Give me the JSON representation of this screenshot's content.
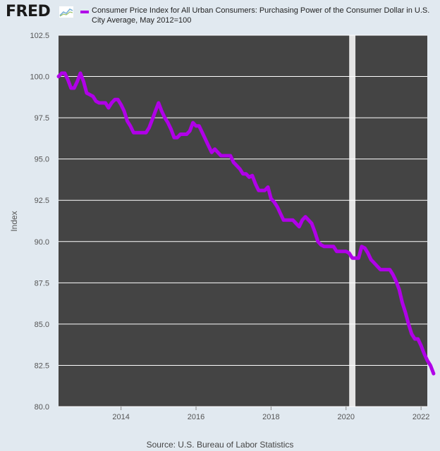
{
  "header": {
    "logo": "FRED",
    "logo_icon": "fred-chart-icon"
  },
  "chart_data": {
    "type": "line",
    "title": "Consumer Price Index for All Urban Consumers: Purchasing Power of the Consumer Dollar in U.S. City Average, May 2012=100",
    "ylabel": "Index",
    "xlabel": "",
    "source": "Source: U.S. Bureau of Labor Statistics",
    "ylim": [
      80.0,
      102.5
    ],
    "yticks": [
      "80.0",
      "82.5",
      "85.0",
      "87.5",
      "90.0",
      "92.5",
      "95.0",
      "97.5",
      "100.0",
      "102.5"
    ],
    "xlim": [
      "2012-05",
      "2022-03"
    ],
    "xticks": [
      "2014",
      "2016",
      "2018",
      "2020",
      "2022"
    ],
    "grid": true,
    "legend_position": "top",
    "recession_shading": [
      "2020-02",
      "2020-04"
    ],
    "colors": {
      "line": "#b000e8",
      "plot_bg": "#444444",
      "page_bg": "#e1e9f0",
      "recession": "#e5e5e5",
      "grid": "#ffffff"
    },
    "series": [
      {
        "name": "Consumer Price Index for All Urban Consumers: Purchasing Power of the Consumer Dollar in U.S. City Average, May 2012=100",
        "points": [
          [
            "2012-05",
            100.0
          ],
          [
            "2012-06",
            100.2
          ],
          [
            "2012-07",
            100.2
          ],
          [
            "2012-08",
            99.8
          ],
          [
            "2012-09",
            99.3
          ],
          [
            "2012-10",
            99.3
          ],
          [
            "2012-11",
            99.7
          ],
          [
            "2012-12",
            100.2
          ],
          [
            "2013-01",
            99.7
          ],
          [
            "2013-02",
            99.0
          ],
          [
            "2013-03",
            98.9
          ],
          [
            "2013-04",
            98.8
          ],
          [
            "2013-05",
            98.5
          ],
          [
            "2013-06",
            98.4
          ],
          [
            "2013-07",
            98.4
          ],
          [
            "2013-08",
            98.4
          ],
          [
            "2013-09",
            98.1
          ],
          [
            "2013-10",
            98.4
          ],
          [
            "2013-11",
            98.6
          ],
          [
            "2013-12",
            98.6
          ],
          [
            "2014-01",
            98.3
          ],
          [
            "2014-02",
            97.9
          ],
          [
            "2014-03",
            97.3
          ],
          [
            "2014-04",
            97.0
          ],
          [
            "2014-05",
            96.6
          ],
          [
            "2014-06",
            96.6
          ],
          [
            "2014-07",
            96.6
          ],
          [
            "2014-08",
            96.6
          ],
          [
            "2014-09",
            96.6
          ],
          [
            "2014-10",
            96.9
          ],
          [
            "2014-11",
            97.4
          ],
          [
            "2014-12",
            97.9
          ],
          [
            "2015-01",
            98.4
          ],
          [
            "2015-02",
            97.9
          ],
          [
            "2015-03",
            97.5
          ],
          [
            "2015-04",
            97.2
          ],
          [
            "2015-05",
            96.8
          ],
          [
            "2015-06",
            96.3
          ],
          [
            "2015-07",
            96.3
          ],
          [
            "2015-08",
            96.5
          ],
          [
            "2015-09",
            96.5
          ],
          [
            "2015-10",
            96.5
          ],
          [
            "2015-11",
            96.7
          ],
          [
            "2015-12",
            97.2
          ],
          [
            "2016-01",
            97.0
          ],
          [
            "2016-02",
            97.0
          ],
          [
            "2016-03",
            96.6
          ],
          [
            "2016-04",
            96.2
          ],
          [
            "2016-05",
            95.8
          ],
          [
            "2016-06",
            95.4
          ],
          [
            "2016-07",
            95.6
          ],
          [
            "2016-08",
            95.4
          ],
          [
            "2016-09",
            95.2
          ],
          [
            "2016-10",
            95.2
          ],
          [
            "2016-11",
            95.2
          ],
          [
            "2016-12",
            95.2
          ],
          [
            "2017-01",
            94.8
          ],
          [
            "2017-02",
            94.6
          ],
          [
            "2017-03",
            94.4
          ],
          [
            "2017-04",
            94.1
          ],
          [
            "2017-05",
            94.1
          ],
          [
            "2017-06",
            93.9
          ],
          [
            "2017-07",
            94.0
          ],
          [
            "2017-08",
            93.5
          ],
          [
            "2017-09",
            93.1
          ],
          [
            "2017-10",
            93.1
          ],
          [
            "2017-11",
            93.1
          ],
          [
            "2017-12",
            93.3
          ],
          [
            "2018-01",
            92.6
          ],
          [
            "2018-02",
            92.4
          ],
          [
            "2018-03",
            92.1
          ],
          [
            "2018-04",
            91.7
          ],
          [
            "2018-05",
            91.3
          ],
          [
            "2018-06",
            91.3
          ],
          [
            "2018-07",
            91.3
          ],
          [
            "2018-08",
            91.3
          ],
          [
            "2018-09",
            91.1
          ],
          [
            "2018-10",
            90.9
          ],
          [
            "2018-11",
            91.3
          ],
          [
            "2018-12",
            91.5
          ],
          [
            "2019-01",
            91.3
          ],
          [
            "2019-02",
            91.1
          ],
          [
            "2019-03",
            90.6
          ],
          [
            "2019-04",
            90.0
          ],
          [
            "2019-05",
            89.8
          ],
          [
            "2019-06",
            89.7
          ],
          [
            "2019-07",
            89.7
          ],
          [
            "2019-08",
            89.7
          ],
          [
            "2019-09",
            89.7
          ],
          [
            "2019-10",
            89.4
          ],
          [
            "2019-11",
            89.4
          ],
          [
            "2019-12",
            89.4
          ],
          [
            "2020-01",
            89.4
          ],
          [
            "2020-02",
            89.3
          ],
          [
            "2020-03",
            89.0
          ],
          [
            "2020-04",
            89.0
          ],
          [
            "2020-05",
            89.0
          ],
          [
            "2020-06",
            89.7
          ],
          [
            "2020-07",
            89.6
          ],
          [
            "2020-08",
            89.3
          ],
          [
            "2020-09",
            88.9
          ],
          [
            "2020-10",
            88.7
          ],
          [
            "2020-11",
            88.5
          ],
          [
            "2020-12",
            88.3
          ],
          [
            "2021-01",
            88.3
          ],
          [
            "2021-02",
            88.3
          ],
          [
            "2021-03",
            88.3
          ],
          [
            "2021-04",
            88.0
          ],
          [
            "2021-05",
            87.6
          ],
          [
            "2021-06",
            87.1
          ],
          [
            "2021-07",
            86.3
          ],
          [
            "2021-08",
            85.7
          ],
          [
            "2021-09",
            85.0
          ],
          [
            "2021-10",
            84.4
          ],
          [
            "2021-11",
            84.1
          ],
          [
            "2021-12",
            84.1
          ],
          [
            "2022-01",
            83.7
          ],
          [
            "2022-02",
            83.2
          ],
          [
            "2022-03",
            82.8
          ],
          [
            "2022-04",
            82.5
          ],
          [
            "2022-05",
            82.0
          ]
        ]
      }
    ]
  }
}
